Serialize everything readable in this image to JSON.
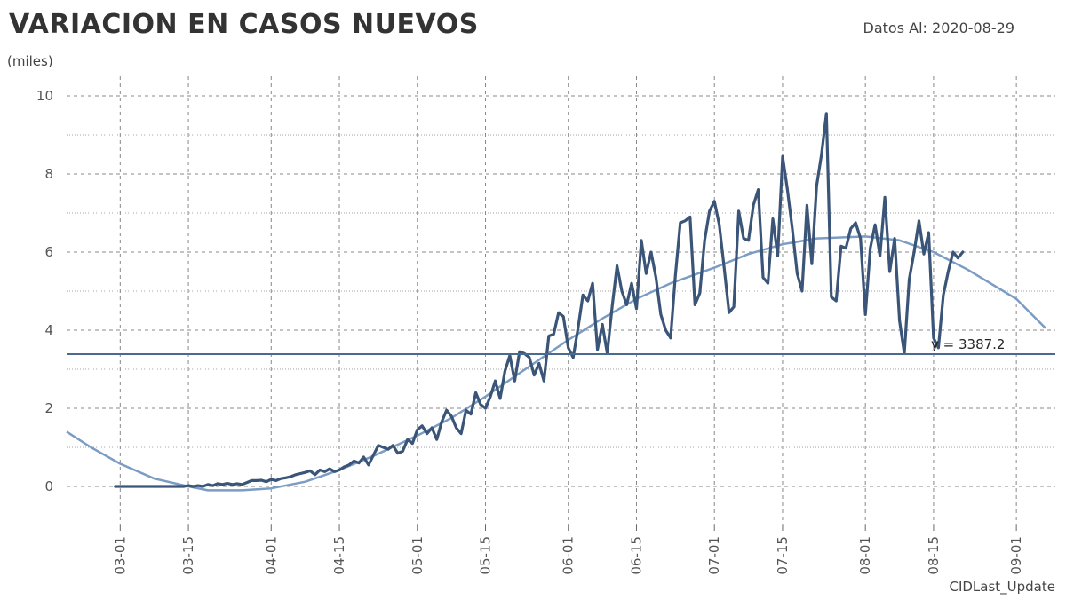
{
  "header": {
    "title": "VARIACION EN CASOS NUEVOS",
    "subtitle": "Datos Al: 2020-08-29"
  },
  "footer": {
    "caption": "CIDLast_Update"
  },
  "colors": {
    "series": "#3a5577",
    "trend": "#7b9cc4",
    "hline": "#4b6a90",
    "grid": "#888888"
  },
  "chart_data": {
    "type": "line",
    "title": "VARIACION EN CASOS NUEVOS",
    "ylabel": "(miles)",
    "ylim": [
      -1,
      10.5
    ],
    "xlim": [
      "2020-02-19",
      "2020-09-09"
    ],
    "x_ticks": [
      "03-01",
      "03-15",
      "04-01",
      "04-15",
      "05-01",
      "05-15",
      "06-01",
      "06-15",
      "07-01",
      "07-15",
      "08-01",
      "08-15",
      "09-01"
    ],
    "y_ticks": [
      0,
      2,
      4,
      6,
      8,
      10
    ],
    "grid": true,
    "hline": {
      "value": 3.3872,
      "label": "y = 3387.2"
    },
    "trend": {
      "name": "",
      "points": [
        [
          "2020-02-19",
          1.4
        ],
        [
          "2020-02-24",
          1.0
        ],
        [
          "2020-03-01",
          0.58
        ],
        [
          "2020-03-08",
          0.2
        ],
        [
          "2020-03-15",
          0.0
        ],
        [
          "2020-03-19",
          -0.1
        ],
        [
          "2020-03-26",
          -0.1
        ],
        [
          "2020-04-01",
          -0.05
        ],
        [
          "2020-04-08",
          0.12
        ],
        [
          "2020-04-15",
          0.42
        ],
        [
          "2020-04-22",
          0.78
        ],
        [
          "2020-05-01",
          1.3
        ],
        [
          "2020-05-08",
          1.75
        ],
        [
          "2020-05-15",
          2.3
        ],
        [
          "2020-05-22",
          2.9
        ],
        [
          "2020-06-01",
          3.75
        ],
        [
          "2020-06-08",
          4.3
        ],
        [
          "2020-06-15",
          4.8
        ],
        [
          "2020-06-22",
          5.2
        ],
        [
          "2020-07-01",
          5.6
        ],
        [
          "2020-07-08",
          5.95
        ],
        [
          "2020-07-15",
          6.2
        ],
        [
          "2020-07-22",
          6.35
        ],
        [
          "2020-08-01",
          6.4
        ],
        [
          "2020-08-08",
          6.3
        ],
        [
          "2020-08-15",
          6.0
        ],
        [
          "2020-08-22",
          5.55
        ],
        [
          "2020-09-01",
          4.8
        ],
        [
          "2020-09-07",
          4.05
        ]
      ]
    },
    "series": [
      {
        "name": "",
        "start": "2020-02-29",
        "values": [
          0,
          0,
          0,
          0,
          0,
          0,
          0,
          0,
          0,
          0,
          0,
          0,
          0,
          0,
          0,
          0.02,
          0.0,
          0.02,
          0.0,
          0.05,
          0.02,
          0.07,
          0.05,
          0.08,
          0.05,
          0.07,
          0.05,
          0.1,
          0.15,
          0.15,
          0.16,
          0.12,
          0.18,
          0.15,
          0.2,
          0.22,
          0.25,
          0.3,
          0.33,
          0.36,
          0.4,
          0.3,
          0.42,
          0.38,
          0.45,
          0.38,
          0.42,
          0.5,
          0.55,
          0.65,
          0.6,
          0.75,
          0.55,
          0.8,
          1.05,
          1.0,
          0.95,
          1.05,
          0.85,
          0.9,
          1.2,
          1.1,
          1.45,
          1.55,
          1.35,
          1.5,
          1.2,
          1.65,
          1.95,
          1.8,
          1.5,
          1.35,
          1.95,
          1.85,
          2.4,
          2.1,
          2.0,
          2.3,
          2.7,
          2.25,
          2.95,
          3.35,
          2.7,
          3.45,
          3.4,
          3.3,
          2.85,
          3.15,
          2.7,
          3.85,
          3.9,
          4.45,
          4.35,
          3.55,
          3.3,
          4.05,
          4.9,
          4.75,
          5.2,
          3.5,
          4.15,
          3.4,
          4.6,
          5.65,
          5.0,
          4.65,
          5.2,
          4.55,
          6.3,
          5.45,
          6.0,
          5.35,
          4.4,
          4.0,
          3.8,
          5.4,
          6.75,
          6.8,
          6.9,
          4.65,
          4.95,
          6.3,
          7.05,
          7.3,
          6.7,
          5.6,
          4.45,
          4.6,
          7.05,
          6.35,
          6.3,
          7.2,
          7.6,
          5.35,
          5.2,
          6.85,
          5.9,
          8.45,
          7.6,
          6.6,
          5.45,
          5.0,
          7.2,
          5.7,
          7.7,
          8.5,
          9.55,
          4.85,
          4.75,
          6.15,
          6.1,
          6.6,
          6.75,
          6.35,
          4.4,
          6.1,
          6.7,
          5.9,
          7.4,
          5.5,
          6.35,
          4.25,
          3.4,
          5.3,
          6.0,
          6.8,
          5.95,
          6.5,
          3.8,
          3.55,
          4.9,
          5.5,
          6.0,
          5.85,
          6.0
        ]
      }
    ]
  }
}
